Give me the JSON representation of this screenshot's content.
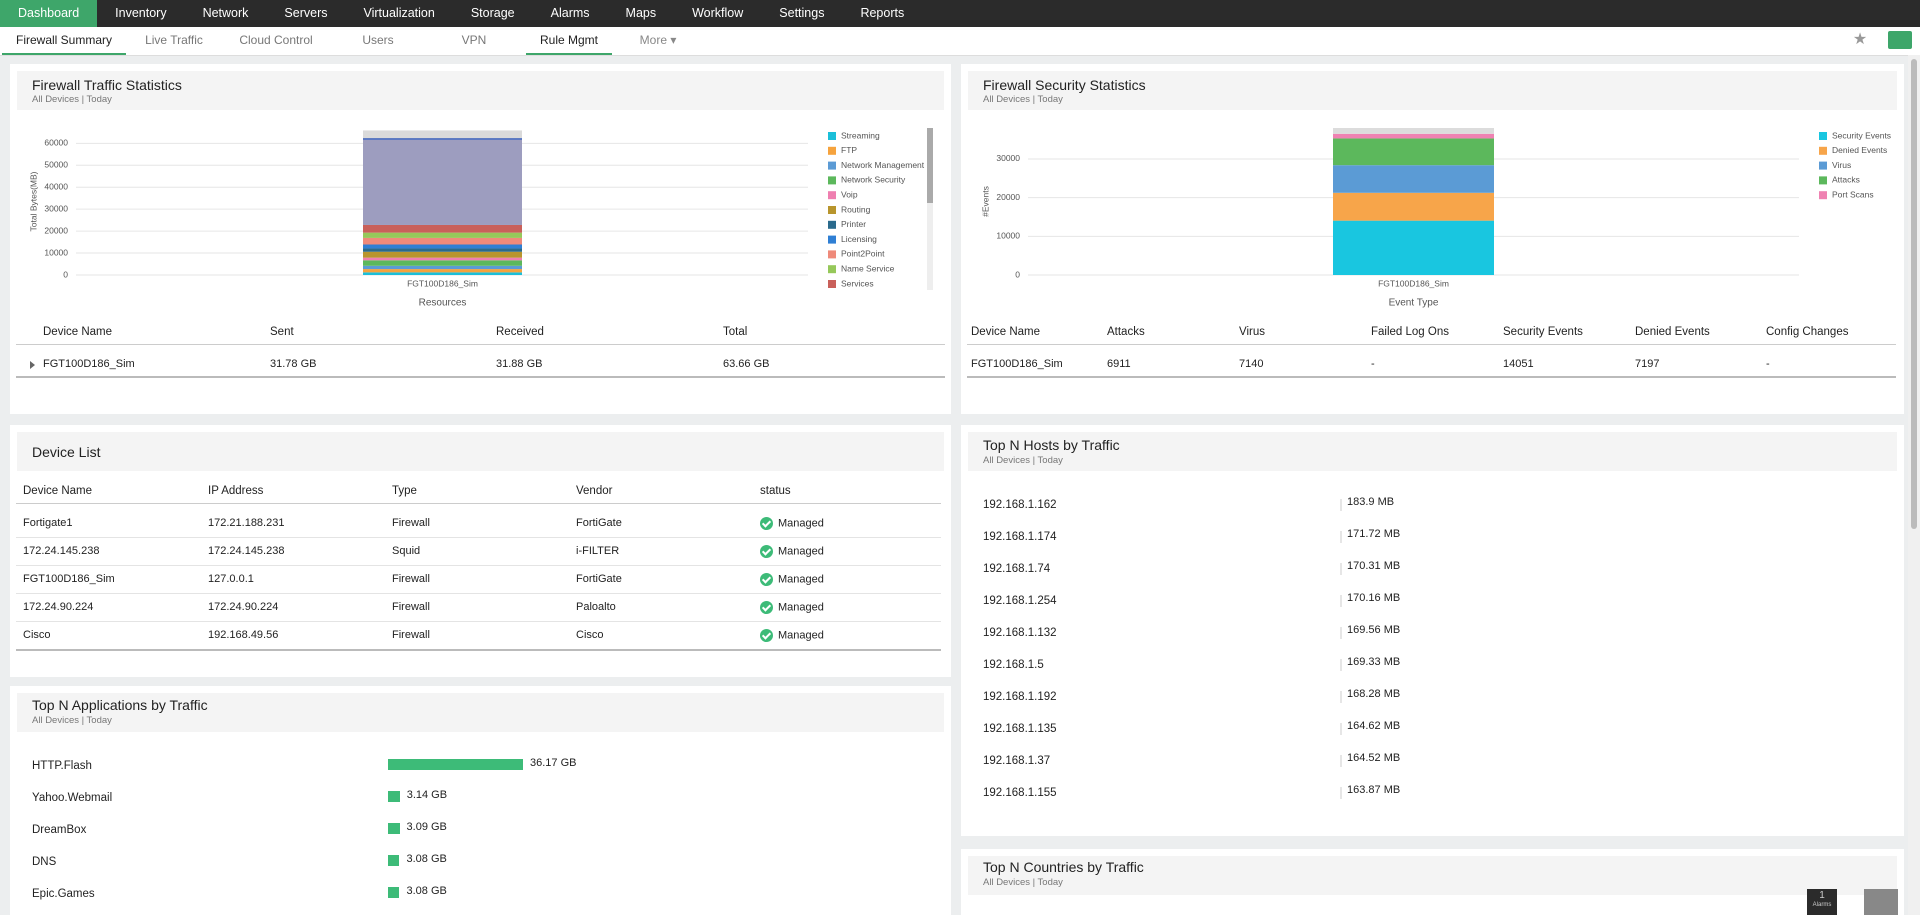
{
  "nav": {
    "tabs": [
      "Dashboard",
      "Inventory",
      "Network",
      "Servers",
      "Virtualization",
      "Storage",
      "Alarms",
      "Maps",
      "Workflow",
      "Settings",
      "Reports"
    ]
  },
  "subnav": {
    "tabs": [
      "Firewall Summary",
      "Live Traffic",
      "Cloud Control",
      "Users",
      "VPN",
      "Rule Mgmt"
    ],
    "more": "More"
  },
  "traffic": {
    "title": "Firewall Traffic Statistics",
    "subtitle": "All Devices | Today",
    "chart_data": {
      "type": "bar",
      "ylabel": "Total Bytes(MB)",
      "xlabel": "Resources",
      "categories": [
        "FGT100D186_Sim"
      ],
      "ylim": [
        0,
        67000
      ],
      "yticks": [
        0,
        10000,
        20000,
        30000,
        40000,
        50000,
        60000
      ],
      "grid": true,
      "series": [
        {
          "name": "Streaming",
          "color": "#1bbfd9",
          "values": [
            1200
          ]
        },
        {
          "name": "FTP",
          "color": "#f6a33d",
          "values": [
            1500
          ]
        },
        {
          "name": "Network Management",
          "color": "#5b9bd5",
          "values": [
            1500
          ]
        },
        {
          "name": "Network Security",
          "color": "#5cb85c",
          "values": [
            2500
          ]
        },
        {
          "name": "Voip",
          "color": "#ef7fb0",
          "values": [
            1200
          ]
        },
        {
          "name": "Routing",
          "color": "#b8952d",
          "values": [
            2700
          ]
        },
        {
          "name": "Printer",
          "color": "#2a6a8c",
          "values": [
            1500
          ]
        },
        {
          "name": "Licensing",
          "color": "#2f7fd4",
          "values": [
            1800
          ]
        },
        {
          "name": "Point2Point",
          "color": "#ef8a7a",
          "values": [
            3000
          ]
        },
        {
          "name": "Name Service",
          "color": "#96c85a",
          "values": [
            2400
          ]
        },
        {
          "name": "Services",
          "color": "#c9605a",
          "values": [
            3500
          ]
        },
        {
          "color": "#9d9dbf",
          "values": [
            38800
          ]
        },
        {
          "color": "#4466bb",
          "values": [
            800
          ]
        },
        {
          "color": "#dadada",
          "values": [
            3500
          ]
        }
      ]
    },
    "table": {
      "columns": [
        "Device Name",
        "Sent",
        "Received",
        "Total"
      ],
      "rows": [
        [
          "FGT100D186_Sim",
          "31.78 GB",
          "31.88 GB",
          "63.66 GB"
        ]
      ]
    }
  },
  "security": {
    "title": "Firewall Security Statistics",
    "subtitle": "All Devices | Today",
    "chart_data": {
      "type": "bar",
      "ylabel": "#Events",
      "xlabel": "Event Type",
      "categories": [
        "FGT100D186_Sim"
      ],
      "ylim": [
        0,
        38000
      ],
      "yticks": [
        0,
        10000,
        20000,
        30000
      ],
      "grid": true,
      "series": [
        {
          "name": "Security Events",
          "color": "#19c6e0",
          "values": [
            14051
          ]
        },
        {
          "name": "Denied Events",
          "color": "#f7a54a",
          "values": [
            7197
          ]
        },
        {
          "name": "Virus",
          "color": "#5b9bd5",
          "values": [
            7140
          ]
        },
        {
          "name": "Attacks",
          "color": "#5cb85c",
          "values": [
            6911
          ]
        },
        {
          "name": "Port Scans",
          "color": "#ef82b2",
          "values": [
            1200
          ]
        },
        {
          "color": "#dcdcdc",
          "values": [
            1500
          ]
        }
      ]
    },
    "table": {
      "columns": [
        "Device Name",
        "Attacks",
        "Virus",
        "Failed Log Ons",
        "Security Events",
        "Denied Events",
        "Config Changes"
      ],
      "rows": [
        [
          "FGT100D186_Sim",
          6911,
          7140,
          "-",
          14051,
          7197,
          "-"
        ]
      ]
    }
  },
  "devices": {
    "title": "Device List",
    "columns": [
      "Device Name",
      "IP Address",
      "Type",
      "Vendor",
      "status"
    ],
    "rows": [
      [
        "Fortigate1",
        "172.21.188.231",
        "Firewall",
        "FortiGate",
        "Managed"
      ],
      [
        "172.24.145.238",
        "172.24.145.238",
        "Squid",
        "i-FILTER",
        "Managed"
      ],
      [
        "FGT100D186_Sim",
        "127.0.0.1",
        "Firewall",
        "FortiGate",
        "Managed"
      ],
      [
        "172.24.90.224",
        "172.24.90.224",
        "Firewall",
        "Paloalto",
        "Managed"
      ],
      [
        "Cisco",
        "192.168.49.56",
        "Firewall",
        "Cisco",
        "Managed"
      ]
    ]
  },
  "hosts": {
    "title": "Top N Hosts by Traffic",
    "subtitle": "All Devices | Today",
    "rows": [
      [
        "192.168.1.162",
        "183.9 MB"
      ],
      [
        "192.168.1.174",
        "171.72 MB"
      ],
      [
        "192.168.1.74",
        "170.31 MB"
      ],
      [
        "192.168.1.254",
        "170.16 MB"
      ],
      [
        "192.168.1.132",
        "169.56 MB"
      ],
      [
        "192.168.1.5",
        "169.33 MB"
      ],
      [
        "192.168.1.192",
        "168.28 MB"
      ],
      [
        "192.168.1.135",
        "164.62 MB"
      ],
      [
        "192.168.1.37",
        "164.52 MB"
      ],
      [
        "192.168.1.155",
        "163.87 MB"
      ]
    ]
  },
  "apps": {
    "title": "Top N Applications by Traffic",
    "subtitle": "All Devices | Today",
    "chart_data": {
      "type": "hbar",
      "categories": [
        "HTTP.Flash",
        "Yahoo.Webmail",
        "DreamBox",
        "DNS",
        "Epic.Games"
      ],
      "values": [
        36.17,
        3.14,
        3.09,
        3.08,
        3.08
      ],
      "value_labels": [
        "36.17 GB",
        "3.14 GB",
        "3.09 GB",
        "3.08 GB",
        "3.08 GB"
      ],
      "color": "#3dbb78"
    }
  },
  "countries": {
    "title": "Top N Countries by Traffic",
    "subtitle": "All Devices | Today"
  },
  "footer": {
    "alarm_count": "1",
    "alarm_label": "Alarms"
  }
}
